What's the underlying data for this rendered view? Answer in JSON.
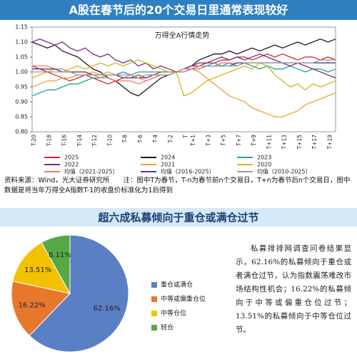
{
  "chart_data": [
    {
      "type": "line",
      "title": "A股在春节后的20个交易日里通常表现较好",
      "subtitle": "万得全A行情走势",
      "note": "资料来源：Wind，光大证券研究所　　注：图中T为春节，T-n为春节前n个交易日，T+n为春节后n个交易日，图中数据是将当年万得全A指数T-1的收盘价标准化为1后得到",
      "categories": [
        "T-20",
        null,
        "T-18",
        null,
        "T-16",
        null,
        "T-14",
        null,
        "T-12",
        null,
        "T-10",
        null,
        "T-8",
        null,
        "T-6",
        null,
        "T-4",
        null,
        "T-2",
        null,
        "T",
        "T+1",
        null,
        "T+3",
        null,
        "T+5",
        null,
        "T+7",
        null,
        "T+9",
        null,
        "T+11",
        null,
        "T+13",
        null,
        "T+15",
        null,
        "T+17",
        null,
        "T+19",
        null
      ],
      "ylim": [
        0.8,
        1.15
      ],
      "yticks": [
        {
          "value": 0.8,
          "label": "0.80"
        },
        {
          "value": 0.85,
          "label": "0.85"
        },
        {
          "value": 0.9,
          "label": "0.90"
        },
        {
          "value": 0.95,
          "label": "0.95"
        },
        {
          "value": 1.0,
          "label": "1.00"
        },
        {
          "value": 1.05,
          "label": "1.05"
        },
        {
          "value": 1.1,
          "label": "1.10"
        },
        {
          "value": 1.15,
          "label": "1.15"
        }
      ],
      "series": [
        {
          "name": "2025",
          "color": "#d9262a",
          "values": [
            1.02,
            1.01,
            1.0,
            0.99,
            0.98,
            0.97,
            0.98,
            0.99,
            0.98,
            0.97,
            0.96,
            0.97,
            0.98,
            0.98,
            0.99,
            0.98,
            0.99,
            1.0,
            1.0,
            1.0,
            1.01,
            1.02,
            1.02,
            1.03,
            1.03,
            1.04,
            1.04,
            1.05,
            1.05,
            1.04,
            1.05,
            1.06,
            1.05,
            1.06,
            1.05,
            1.04,
            1.05,
            1.05,
            1.04,
            1.05,
            1.04
          ]
        },
        {
          "name": "2024",
          "color": "#1a1a1a",
          "values": [
            1.1,
            1.09,
            1.08,
            1.09,
            1.07,
            1.06,
            1.05,
            1.03,
            1.01,
            1.0,
            0.98,
            0.97,
            0.95,
            0.93,
            0.92,
            0.94,
            0.96,
            0.98,
            0.99,
            1.0,
            1.01,
            1.02,
            1.04,
            1.05,
            1.06,
            1.06,
            1.07,
            1.06,
            1.07,
            1.08,
            1.07,
            1.08,
            1.09,
            1.08,
            1.09,
            1.1,
            1.09,
            1.1,
            1.11,
            1.1,
            1.11
          ]
        },
        {
          "name": "2023",
          "color": "#1aa3a3",
          "values": [
            0.92,
            0.93,
            0.94,
            0.94,
            0.95,
            0.96,
            0.96,
            0.97,
            0.98,
            0.98,
            0.99,
            0.99,
            1.0,
            0.99,
            1.0,
            1.0,
            1.0,
            1.0,
            1.0,
            1.0,
            1.01,
            1.01,
            1.02,
            1.02,
            1.03,
            1.02,
            1.03,
            1.02,
            1.03,
            1.02,
            1.01,
            1.02,
            1.01,
            1.01,
            1.02,
            1.01,
            1.0,
            1.01,
            1.01,
            1.0,
            1.01
          ]
        },
        {
          "name": "2022",
          "color": "#7a2b7f",
          "values": [
            1.1,
            1.11,
            1.1,
            1.09,
            1.1,
            1.08,
            1.07,
            1.08,
            1.06,
            1.05,
            1.06,
            1.04,
            1.03,
            1.04,
            1.02,
            1.03,
            1.01,
            1.02,
            1.01,
            1.0,
            1.01,
            1.02,
            1.03,
            1.03,
            1.04,
            1.05,
            1.04,
            1.05,
            1.04,
            1.05,
            1.06,
            1.05,
            1.04,
            1.03,
            1.02,
            1.03,
            1.02,
            1.01,
            1.0,
            0.99,
            0.98
          ]
        },
        {
          "name": "2021",
          "color": "#f0a030",
          "values": [
            0.95,
            0.96,
            0.97,
            0.97,
            0.98,
            0.98,
            0.99,
            0.99,
            1.0,
            0.99,
            1.0,
            0.99,
            0.98,
            0.99,
            0.98,
            0.97,
            0.98,
            0.99,
            0.99,
            1.0,
            1.01,
            1.01,
            1.0,
            0.98,
            0.96,
            0.94,
            0.92,
            0.91,
            0.9,
            0.88,
            0.87,
            0.86,
            0.85,
            0.85,
            0.86,
            0.87,
            0.89,
            0.9,
            0.91,
            0.92,
            0.93
          ]
        },
        {
          "name": "2020",
          "color": "#d6b419",
          "values": [
            0.98,
            0.99,
            1.0,
            1.01,
            1.0,
            1.01,
            1.02,
            1.01,
            1.02,
            1.03,
            1.02,
            1.03,
            1.02,
            1.03,
            1.04,
            1.03,
            1.02,
            1.01,
            1.0,
            1.0,
            0.92,
            0.93,
            0.95,
            0.97,
            0.98,
            0.99,
            1.0,
            1.01,
            1.02,
            1.01,
            1.03,
            1.02,
            0.99,
            0.97,
            0.95,
            0.96,
            0.94,
            0.96,
            0.95,
            0.96,
            0.97
          ]
        },
        {
          "name": "均值（2021-2025）",
          "color": "#e87a7a",
          "values": [
            1.02,
            1.02,
            1.02,
            1.01,
            1.01,
            1.0,
            1.0,
            1.0,
            0.99,
            0.98,
            0.98,
            0.97,
            0.97,
            0.97,
            0.96,
            0.97,
            0.98,
            0.99,
            0.99,
            1.0,
            1.01,
            1.01,
            1.02,
            1.02,
            1.02,
            1.03,
            1.03,
            1.03,
            1.03,
            1.03,
            1.03,
            1.03,
            1.03,
            1.03,
            1.03,
            1.03,
            1.03,
            1.03,
            1.03,
            1.03,
            1.03
          ]
        },
        {
          "name": "均值（2016-2025）",
          "color": "#4f3a8f",
          "values": [
            1.01,
            1.01,
            1.01,
            1.01,
            1.0,
            1.0,
            1.0,
            1.0,
            0.99,
            0.99,
            0.99,
            0.99,
            0.98,
            0.98,
            0.98,
            0.98,
            0.99,
            0.99,
            0.99,
            1.0,
            1.0,
            1.01,
            1.01,
            1.02,
            1.02,
            1.02,
            1.02,
            1.03,
            1.03,
            1.03,
            1.03,
            1.03,
            1.03,
            1.03,
            1.03,
            1.03,
            1.03,
            1.03,
            1.03,
            1.03,
            1.03
          ]
        },
        {
          "name": "均值（2010-2025）",
          "color": "#9b9b9b",
          "values": [
            1.0,
            1.0,
            1.0,
            1.0,
            1.0,
            1.0,
            0.99,
            0.99,
            0.99,
            0.99,
            0.99,
            0.99,
            0.99,
            0.99,
            0.98,
            0.99,
            0.99,
            0.99,
            0.99,
            1.0,
            1.0,
            1.01,
            1.01,
            1.02,
            1.02,
            1.02,
            1.02,
            1.02,
            1.03,
            1.03,
            1.03,
            1.03,
            1.03,
            1.03,
            1.03,
            1.03,
            1.03,
            1.03,
            1.04,
            1.04,
            1.04
          ]
        }
      ]
    },
    {
      "type": "pie",
      "title": "超六成私募倾向于重仓或满仓过节",
      "annotation": "私募排排网调查问卷结果显示，62.16%的私募倾向于重仓或者满仓过节，认为指数震荡难改市场结构性机会；16.22%的私募倾向于中等或偏重仓位过节；13.51%的私募倾向于中等仓位过节。",
      "categories": [
        "重仓或满仓",
        "中等或偏重仓位",
        "中等仓位",
        "轻仓"
      ],
      "values": [
        62.16,
        16.22,
        13.51,
        8.11
      ],
      "value_labels": [
        "62.16%",
        "16.22%",
        "13.51%",
        "8.11%"
      ],
      "colors": [
        "#5b7fc4",
        "#e8772e",
        "#f2c200",
        "#56a845"
      ]
    }
  ]
}
